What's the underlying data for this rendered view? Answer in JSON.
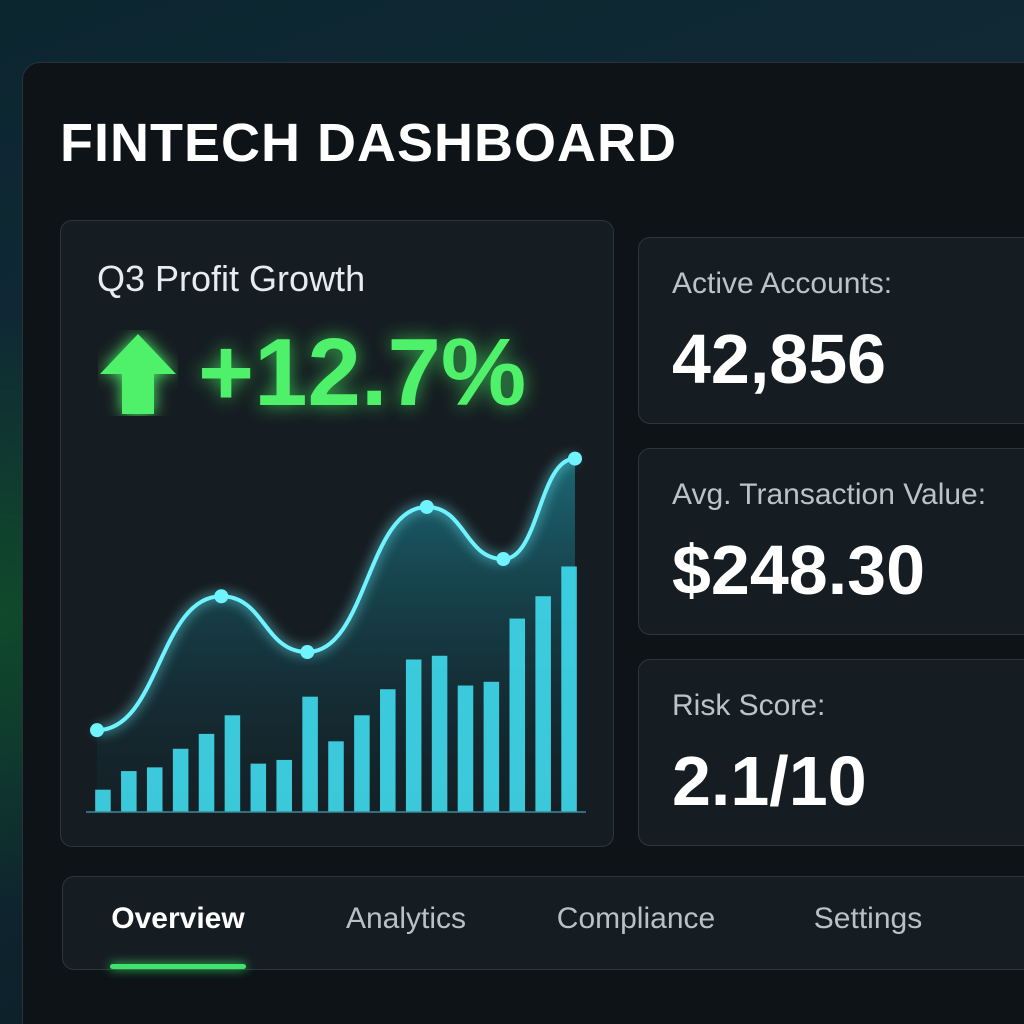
{
  "header": {
    "title": "FINTECH DASHBOARD"
  },
  "profit": {
    "label": "Q3 Profit Growth",
    "value": "+12.7%",
    "chart": {
      "type": "bar-line",
      "ylim": [
        0,
        100
      ],
      "xlim": [
        0,
        100
      ],
      "bar_color": "#3fdcee",
      "line_color": "#6ff4ff",
      "bars": [
        6,
        11,
        12,
        17,
        21,
        26,
        13,
        14,
        31,
        19,
        26,
        33,
        41,
        42,
        34,
        35,
        52,
        58,
        66
      ],
      "line": {
        "x": [
          0,
          26,
          44,
          69,
          85,
          100
        ],
        "values": [
          22,
          58,
          43,
          82,
          68,
          95
        ]
      }
    }
  },
  "stats": [
    {
      "label": "Active Accounts:",
      "value": "42,856"
    },
    {
      "label": "Avg. Transaction Value:",
      "value": "$248.30"
    },
    {
      "label": "Risk Score:",
      "value": "2.1/10"
    }
  ],
  "tabs": [
    {
      "label": "Overview",
      "active": true
    },
    {
      "label": "Analytics",
      "active": false
    },
    {
      "label": "Compliance",
      "active": false
    },
    {
      "label": "Settings",
      "active": false
    }
  ]
}
